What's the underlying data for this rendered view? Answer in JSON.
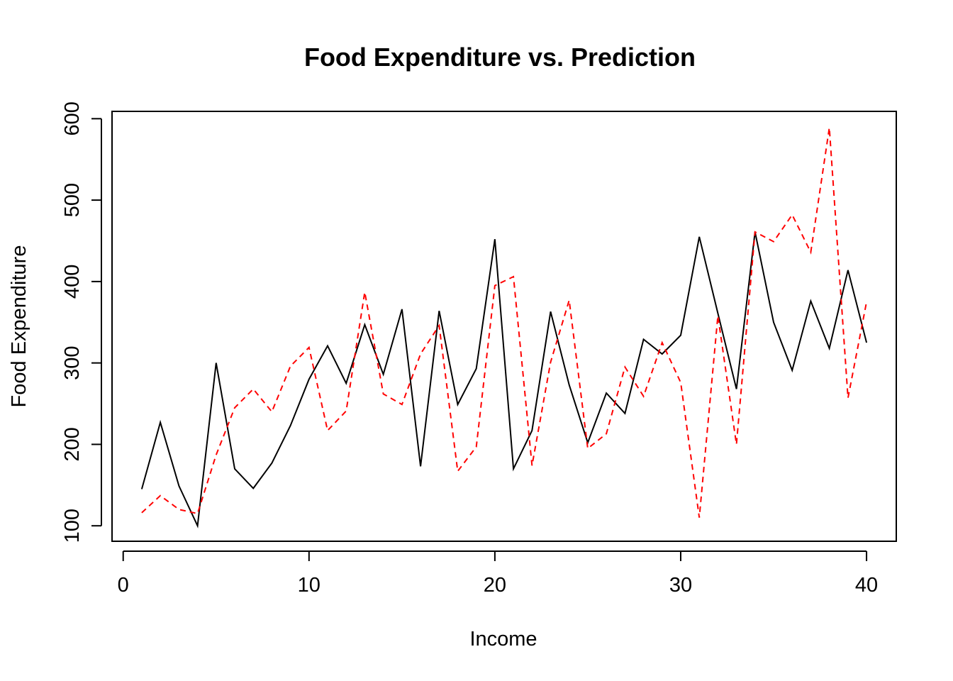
{
  "chart_data": {
    "type": "line",
    "title": "Food Expenditure vs. Prediction",
    "xlabel": "Income",
    "ylabel": "Food Expenditure",
    "xlim": [
      -0.6,
      41.6
    ],
    "ylim": [
      81,
      609
    ],
    "x_ticks": [
      0,
      10,
      20,
      30,
      40
    ],
    "y_ticks": [
      100,
      200,
      300,
      400,
      500,
      600
    ],
    "grid": false,
    "legend": "none",
    "x": [
      1,
      2,
      3,
      4,
      5,
      6,
      7,
      8,
      9,
      10,
      11,
      12,
      13,
      14,
      15,
      16,
      17,
      18,
      19,
      20,
      21,
      22,
      23,
      24,
      25,
      26,
      27,
      28,
      29,
      30,
      31,
      32,
      33,
      34,
      35,
      36,
      37,
      38,
      39,
      40
    ],
    "series": [
      {
        "color": "#000000",
        "dash": "solid",
        "values": [
          145,
          227,
          149,
          100,
          300,
          170,
          146,
          177,
          223,
          280,
          321,
          275,
          347,
          286,
          366,
          173,
          364,
          249,
          293,
          452,
          170,
          217,
          363,
          273,
          202,
          263,
          238,
          329,
          311,
          334,
          455,
          361,
          268,
          461,
          350,
          291,
          376,
          318,
          414,
          325
        ]
      },
      {
        "color": "#ff0000",
        "dash": "dashed",
        "values": [
          116,
          137,
          120,
          115,
          187,
          245,
          268,
          240,
          296,
          319,
          217,
          241,
          387,
          262,
          249,
          311,
          346,
          167,
          197,
          395,
          406,
          174,
          301,
          377,
          195,
          213,
          295,
          259,
          325,
          276,
          110,
          358,
          200,
          461,
          449,
          482,
          436,
          589,
          257,
          375
        ]
      }
    ]
  }
}
